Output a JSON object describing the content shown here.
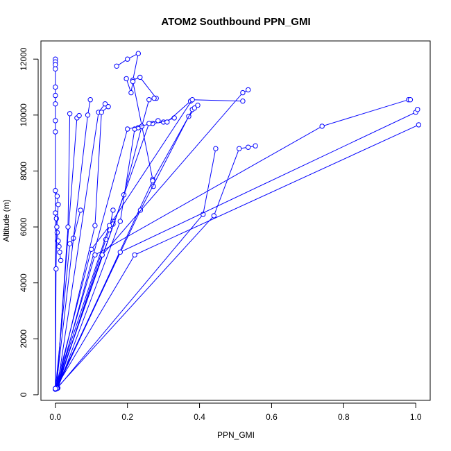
{
  "chart_data": {
    "type": "line",
    "title": "ATOM2 Southbound PPN_GMI",
    "xlabel": "PPN_GMI",
    "ylabel": "Altitude (m)",
    "xlim": [
      -0.04,
      1.04
    ],
    "ylim": [
      -200,
      12650
    ],
    "x_ticks": [
      0.0,
      0.2,
      0.4,
      0.6,
      0.8,
      1.0
    ],
    "x_tick_labels": [
      "0.0",
      "0.2",
      "0.4",
      "0.6",
      "0.8",
      "1.0"
    ],
    "y_ticks": [
      0,
      2000,
      4000,
      6000,
      8000,
      10000,
      12000
    ],
    "y_tick_labels": [
      "0",
      "2000",
      "4000",
      "6000",
      "8000",
      "10000",
      "12000"
    ],
    "grid": false,
    "legend": "none",
    "color": "#0000ff",
    "marker": "open-circle",
    "series": [
      {
        "x": [
          0.0,
          0.0,
          0.0,
          0.0,
          0.0,
          0.0,
          0.0,
          0.0,
          0.0,
          0.0
        ],
        "y": [
          12000,
          11900,
          11800,
          11650,
          11000,
          10700,
          10400,
          9800,
          9400,
          220
        ]
      },
      {
        "x": [
          0.0,
          0.003,
          0.005,
          0.008,
          0.01,
          0.012,
          0.015
        ],
        "y": [
          6500,
          6300,
          5800,
          5500,
          5300,
          5100,
          4800
        ]
      },
      {
        "x": [
          0.0,
          0.005,
          0.008,
          0.004,
          0.002,
          0.0
        ],
        "y": [
          7300,
          7100,
          6800,
          6000,
          4500,
          200
        ]
      },
      {
        "x": [
          0.0,
          0.04,
          0.05,
          0.07
        ],
        "y": [
          200,
          5400,
          5600,
          6600
        ]
      },
      {
        "x": [
          0.002,
          0.09,
          0.097
        ],
        "y": [
          250,
          10000,
          10550
        ]
      },
      {
        "x": [
          0.003,
          0.06,
          0.066
        ],
        "y": [
          230,
          9900,
          9980
        ]
      },
      {
        "x": [
          0.005,
          0.12,
          0.138
        ],
        "y": [
          240,
          10100,
          10400
        ]
      },
      {
        "x": [
          0.004,
          0.035,
          0.04
        ],
        "y": [
          260,
          6000,
          10050
        ]
      },
      {
        "x": [
          0.004,
          0.11,
          0.128,
          0.147
        ],
        "y": [
          230,
          6050,
          10100,
          10300
        ]
      },
      {
        "x": [
          0.0,
          0.1,
          0.16,
          0.16
        ],
        "y": [
          220,
          5200,
          6200,
          6100
        ]
      },
      {
        "x": [
          0.006,
          0.14,
          0.15,
          0.16
        ],
        "y": [
          250,
          5550,
          5900,
          6600
        ]
      },
      {
        "x": [
          0.007,
          0.18,
          0.22,
          0.23
        ],
        "y": [
          240,
          6200,
          9500,
          9550
        ]
      },
      {
        "x": [
          0.17,
          0.2,
          0.23,
          0.215,
          0.235,
          0.28
        ],
        "y": [
          11750,
          12000,
          12200,
          11250,
          11350,
          10600
        ]
      },
      {
        "x": [
          0.197,
          0.21,
          0.215,
          0.27,
          0.272
        ],
        "y": [
          11300,
          10800,
          11200,
          7700,
          7450
        ]
      },
      {
        "x": [
          0.003,
          0.19,
          0.24,
          0.26,
          0.274
        ],
        "y": [
          220,
          7150,
          9600,
          10550,
          10600
        ]
      },
      {
        "x": [
          0.005,
          0.2,
          0.27,
          0.3,
          0.33
        ],
        "y": [
          240,
          9500,
          9700,
          9750,
          9900
        ]
      },
      {
        "x": [
          0.002,
          0.26,
          0.285,
          0.31,
          0.375
        ],
        "y": [
          230,
          9700,
          9800,
          9750,
          10500
        ]
      },
      {
        "x": [
          0.003,
          0.27,
          0.37,
          0.395
        ],
        "y": [
          230,
          7650,
          9950,
          10350
        ]
      },
      {
        "x": [
          0.0,
          0.236,
          0.38,
          0.386
        ],
        "y": [
          200,
          6600,
          10200,
          10250
        ]
      },
      {
        "x": [
          0.0,
          0.15,
          0.38,
          0.52
        ],
        "y": [
          210,
          6050,
          10550,
          10500
        ]
      },
      {
        "x": [
          0.004,
          0.13,
          0.52,
          0.535
        ],
        "y": [
          240,
          5000,
          10800,
          10900
        ]
      },
      {
        "x": [
          0.005,
          0.41,
          0.445
        ],
        "y": [
          230,
          6450,
          8800
        ]
      },
      {
        "x": [
          0.003,
          0.44,
          0.51,
          0.535,
          0.555
        ],
        "y": [
          220,
          6400,
          8800,
          8850,
          8900
        ]
      },
      {
        "x": [
          0.002,
          0.11,
          0.74,
          0.98,
          0.985
        ],
        "y": [
          220,
          5000,
          9600,
          10550,
          10550
        ]
      },
      {
        "x": [
          0.004,
          0.18,
          1.0,
          1.005
        ],
        "y": [
          230,
          5100,
          10100,
          10200
        ]
      },
      {
        "x": [
          0.0,
          0.22,
          1.008
        ],
        "y": [
          220,
          5000,
          9650
        ]
      }
    ]
  }
}
